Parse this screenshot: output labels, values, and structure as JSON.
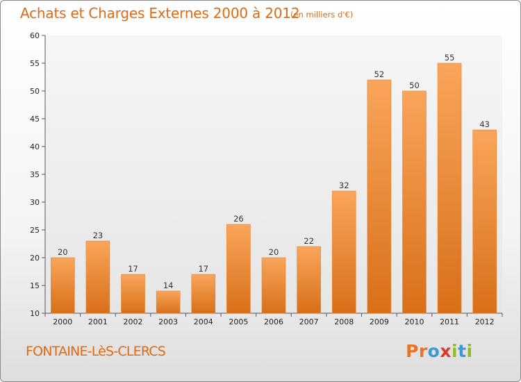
{
  "header": {
    "title": "Achats et Charges Externes 2000 à 2012",
    "subtitle": "(en milliers d'€)"
  },
  "footer": {
    "commune": "FONTAINE-LèS-CLERCS",
    "logo": [
      "P",
      "r",
      "o",
      "x",
      "i",
      "t",
      "i"
    ],
    "logo_colors": [
      "#e8742a",
      "#e8742a",
      "#3a9ad9",
      "#d83a2a",
      "#8cbf26",
      "#3a9ad9",
      "#8cbf26"
    ]
  },
  "chart_data": {
    "type": "bar",
    "title": "Achats et Charges Externes 2000 à 2012",
    "subtitle": "(en milliers d'€)",
    "categories": [
      "2000",
      "2001",
      "2002",
      "2003",
      "2004",
      "2005",
      "2006",
      "2007",
      "2008",
      "2009",
      "2010",
      "2011",
      "2012"
    ],
    "values": [
      20,
      23,
      17,
      14,
      17,
      26,
      20,
      22,
      32,
      52,
      50,
      55,
      43
    ],
    "ylim": [
      10,
      60
    ],
    "yticks": [
      10,
      15,
      20,
      25,
      30,
      35,
      40,
      45,
      50,
      55,
      60
    ],
    "grid": false,
    "colors": {
      "bar_top": "#f9a55a",
      "bar_bottom": "#d86f18",
      "accent_text": "#e06a12"
    }
  }
}
